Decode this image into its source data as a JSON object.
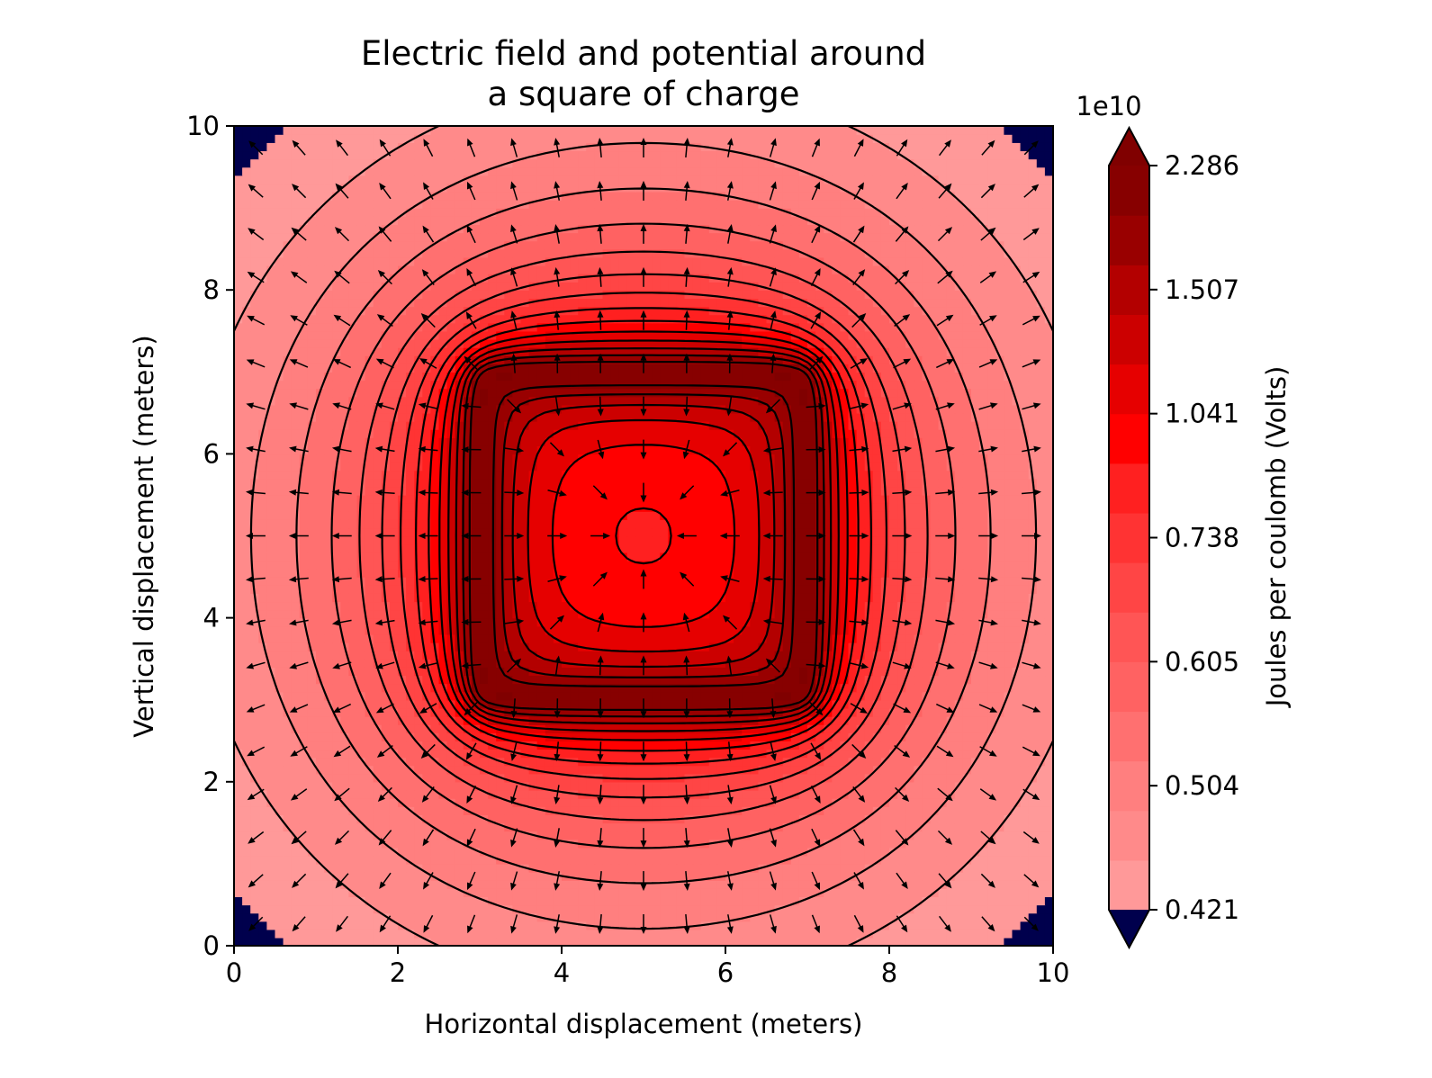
{
  "chart_data": {
    "type": "heatmap",
    "title": [
      "Electric field and potential around",
      "a square of charge"
    ],
    "xlabel": "Horizontal displacement (meters)",
    "ylabel": "Vertical displacement (meters)",
    "xlim": [
      0,
      10
    ],
    "ylim": [
      0,
      10
    ],
    "xticks": [
      "0",
      "2",
      "4",
      "6",
      "8",
      "10"
    ],
    "yticks": [
      "0",
      "2",
      "4",
      "6",
      "8",
      "10"
    ],
    "grid": false,
    "colorbar": {
      "label": "Joules per coulomb (Volts)",
      "offset_text": "1e10",
      "tick_labels": [
        "2.286",
        "1.507",
        "1.041",
        "0.738",
        "0.605",
        "0.504",
        "0.421"
      ],
      "tick_values_1e10": [
        2.286,
        1.507,
        1.041,
        0.738,
        0.605,
        0.504,
        0.421
      ],
      "extend": "both",
      "over_color": "#800000",
      "under_color": "#00004d",
      "level_colors": [
        "#ff9999",
        "#ff8a8a",
        "#ff7f7f",
        "#ff7070",
        "#ff6262",
        "#ff5555",
        "#ff4545",
        "#ff3333",
        "#ff2020",
        "#ff0000",
        "#e60000",
        "#cc0000",
        "#b30000",
        "#990000",
        "#870000"
      ]
    },
    "charge_square": {
      "x_min": 3,
      "x_max": 7,
      "y_min": 3,
      "y_max": 7
    },
    "overlays": [
      "filled potential contours",
      "black contour lines",
      "electric field arrows (quiver)"
    ]
  }
}
